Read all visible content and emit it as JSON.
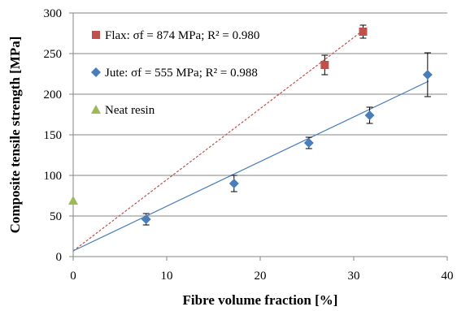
{
  "chart_data": {
    "type": "scatter",
    "xlabel": "Fibre volume fraction [%]",
    "ylabel": "Composite tensile strength [MPa]",
    "xlim": [
      0,
      40
    ],
    "ylim": [
      0,
      300
    ],
    "x_ticks": [
      0,
      10,
      20,
      30,
      40
    ],
    "y_ticks": [
      0,
      50,
      100,
      150,
      200,
      250,
      300
    ],
    "grid": "horizontal",
    "legend_position": "top-left",
    "series": [
      {
        "name": "Flax: σf = 874 MPa; R² = 0.980",
        "marker": "square",
        "color": "#c0504d",
        "points": [
          {
            "x": 26.9,
            "y": 236,
            "err": 12
          },
          {
            "x": 31.0,
            "y": 277,
            "err": 8
          }
        ],
        "trendline": {
          "style": "dashed",
          "color": "#c0504d",
          "from": [
            0,
            7
          ],
          "to": [
            31.5,
            283
          ]
        }
      },
      {
        "name": "Jute: σf = 555 MPa; R² = 0.988",
        "marker": "diamond",
        "color": "#4a7ebb",
        "points": [
          {
            "x": 7.8,
            "y": 46,
            "err": 7
          },
          {
            "x": 17.2,
            "y": 90,
            "err": 10
          },
          {
            "x": 25.2,
            "y": 140,
            "err": 7
          },
          {
            "x": 31.7,
            "y": 174,
            "err": 10
          },
          {
            "x": 37.9,
            "y": 224,
            "err": 27
          }
        ],
        "trendline": {
          "style": "solid",
          "color": "#4a7ebb",
          "from": [
            0,
            7
          ],
          "to": [
            38,
            216
          ]
        }
      },
      {
        "name": "Neat resin",
        "marker": "triangle",
        "color": "#9bbb59",
        "points": [
          {
            "x": 0,
            "y": 69
          }
        ]
      }
    ]
  }
}
